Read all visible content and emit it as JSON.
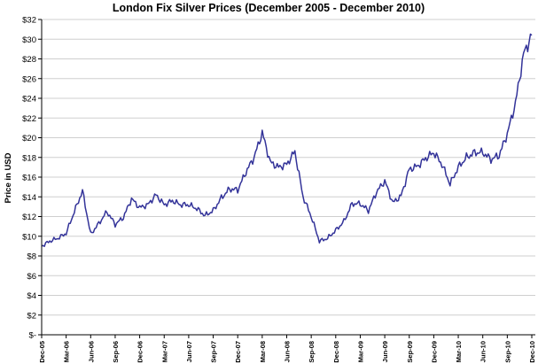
{
  "chart_data": {
    "type": "line",
    "title": "London Fix Silver Prices (December 2005 - December 2010)",
    "ylabel": "Price in USD",
    "xlabel": "",
    "ylim": [
      0,
      32
    ],
    "grid": "horizontal",
    "y_ticks": [
      "$-",
      "$2",
      "$4",
      "$6",
      "$8",
      "$10",
      "$12",
      "$14",
      "$16",
      "$18",
      "$20",
      "$22",
      "$24",
      "$26",
      "$28",
      "$30",
      "$32"
    ],
    "y_tick_values": [
      0,
      2,
      4,
      6,
      8,
      10,
      12,
      14,
      16,
      18,
      20,
      22,
      24,
      26,
      28,
      30,
      32
    ],
    "x_ticks": [
      "Dec-05",
      "Mar-06",
      "Jun-06",
      "Sep-06",
      "Dec-06",
      "Mar-07",
      "Jun-07",
      "Sep-07",
      "Dec-07",
      "Mar-08",
      "Jun-08",
      "Sep-08",
      "Dec-08",
      "Mar-09",
      "Jun-09",
      "Sep-09",
      "Dec-09",
      "Mar-10",
      "Jun-10",
      "Sep-10",
      "Dec-10"
    ],
    "series": [
      {
        "color": "#333399",
        "x": [
          "Dec-05",
          "Jan-06",
          "Feb-06",
          "Mar-06",
          "Apr-06",
          "May-06",
          "Jun-06",
          "Jul-06",
          "Aug-06",
          "Sep-06",
          "Oct-06",
          "Nov-06",
          "Dec-06",
          "Jan-07",
          "Feb-07",
          "Mar-07",
          "Apr-07",
          "May-07",
          "Jun-07",
          "Jul-07",
          "Aug-07",
          "Sep-07",
          "Oct-07",
          "Nov-07",
          "Dec-07",
          "Jan-08",
          "Feb-08",
          "Mar-08",
          "Apr-08",
          "May-08",
          "Jun-08",
          "Jul-08",
          "Aug-08",
          "Sep-08",
          "Oct-08",
          "Nov-08",
          "Dec-08",
          "Jan-09",
          "Feb-09",
          "Mar-09",
          "Apr-09",
          "May-09",
          "Jun-09",
          "Jul-09",
          "Aug-09",
          "Sep-09",
          "Oct-09",
          "Nov-09",
          "Dec-09",
          "Jan-10",
          "Feb-10",
          "Mar-10",
          "Apr-10",
          "May-10",
          "Jun-10",
          "Jul-10",
          "Aug-10",
          "Sep-10",
          "Oct-10",
          "Nov-10",
          "Dec-10"
        ],
        "values": [
          9.0,
          9.5,
          9.8,
          10.3,
          12.5,
          14.6,
          10.2,
          11.3,
          12.5,
          11.2,
          11.9,
          13.8,
          12.9,
          13.2,
          14.2,
          13.2,
          13.6,
          13.2,
          13.2,
          12.8,
          12.1,
          12.6,
          13.9,
          14.8,
          14.7,
          16.5,
          18.0,
          20.5,
          17.5,
          17.0,
          17.3,
          18.6,
          14.0,
          12.0,
          9.5,
          9.8,
          10.6,
          11.5,
          13.3,
          13.3,
          12.6,
          14.5,
          15.6,
          13.4,
          14.1,
          16.8,
          17.1,
          17.9,
          18.5,
          17.3,
          15.3,
          17.0,
          18.0,
          18.5,
          18.5,
          17.8,
          18.2,
          20.4,
          23.5,
          28.5,
          30.4
        ]
      }
    ]
  }
}
